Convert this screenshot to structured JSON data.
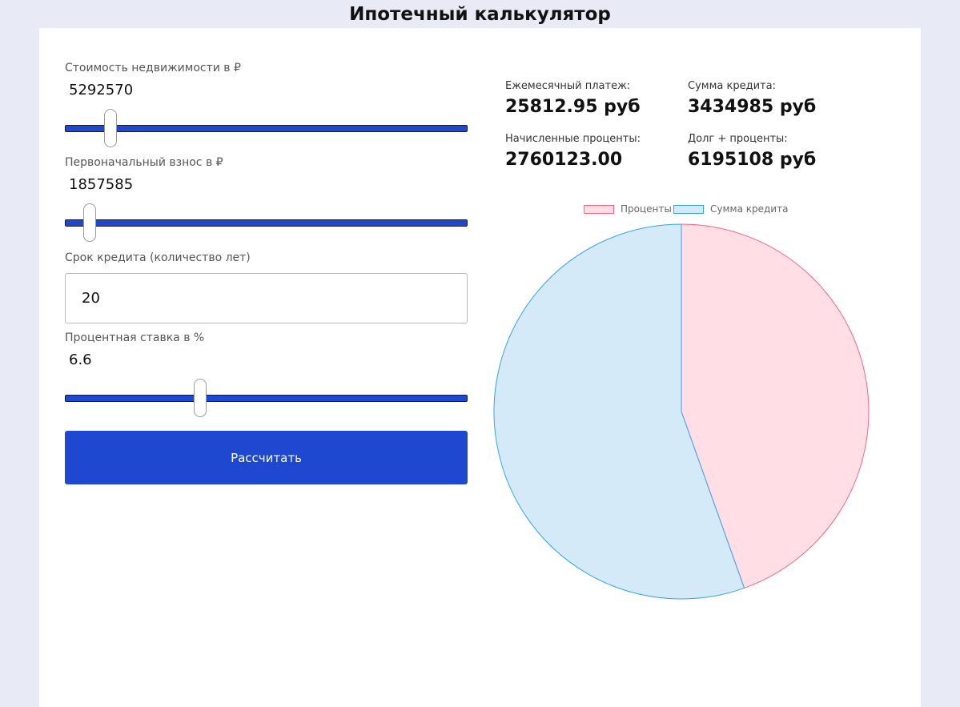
{
  "title": "Ипотечный калькулятор",
  "form": {
    "property_cost": {
      "label": "Стоимость недвижимости в ₽",
      "value": "5292570",
      "slider_fraction": 0.1
    },
    "down_payment": {
      "label": "Первоначальный взнос в ₽",
      "value": "1857585",
      "slider_fraction": 0.047
    },
    "term": {
      "label": "Срок кредита (количество лет)",
      "value": "20"
    },
    "rate": {
      "label": "Процентная ставка в %",
      "value": "6.6",
      "slider_fraction": 0.33
    },
    "submit_label": "Рассчитать"
  },
  "results": {
    "monthly_label": "Ежемесячный платеж:",
    "monthly_value": "25812.95 руб",
    "loan_label": "Сумма кредита:",
    "loan_value": "3434985 руб",
    "interest_label": "Начисленные проценты:",
    "interest_value": "2760123.00",
    "total_label": "Долг + проценты:",
    "total_value": "6195108 руб"
  },
  "colors": {
    "accent": "#1e48cf",
    "interest_fill": "#ffdee5",
    "interest_border": "#ff6384",
    "loan_fill": "#d4eaf9",
    "loan_border": "#36a2eb"
  },
  "chart_data": {
    "type": "pie",
    "legend_position": "top",
    "series": [
      {
        "name": "Проценты",
        "value": 2760123
      },
      {
        "name": "Сумма кредита",
        "value": 3434985
      }
    ]
  }
}
